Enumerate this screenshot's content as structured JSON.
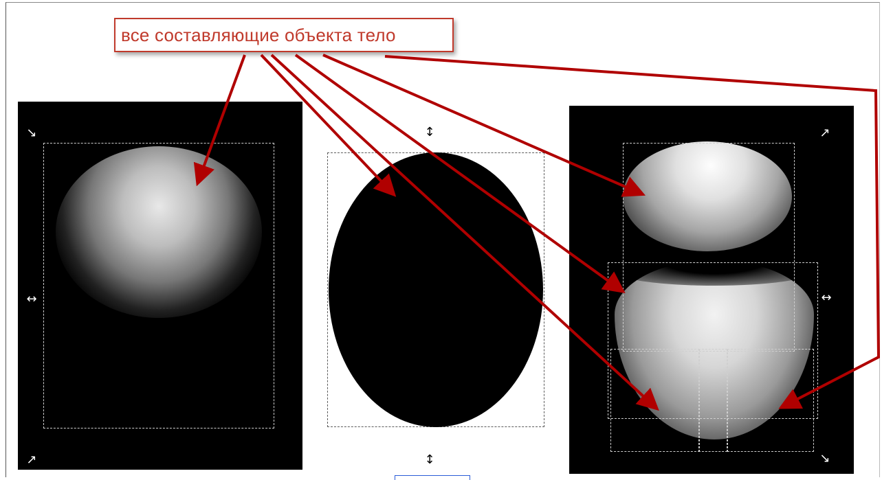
{
  "annotation": {
    "text": "все составляющие объекта тело",
    "color": "#c0392b"
  },
  "panels": {
    "left": {
      "name": "top-highlight-component"
    },
    "middle": {
      "name": "black-ellipse-body"
    },
    "right": {
      "name": "combined-gradient-parts"
    }
  },
  "icons": {
    "diagonal_arrow": "↘",
    "diagonal_arrow_alt": "↗",
    "horizontal_arrow": "↔",
    "vertical_arrow": "↕"
  },
  "arrow_color": "#b00000"
}
